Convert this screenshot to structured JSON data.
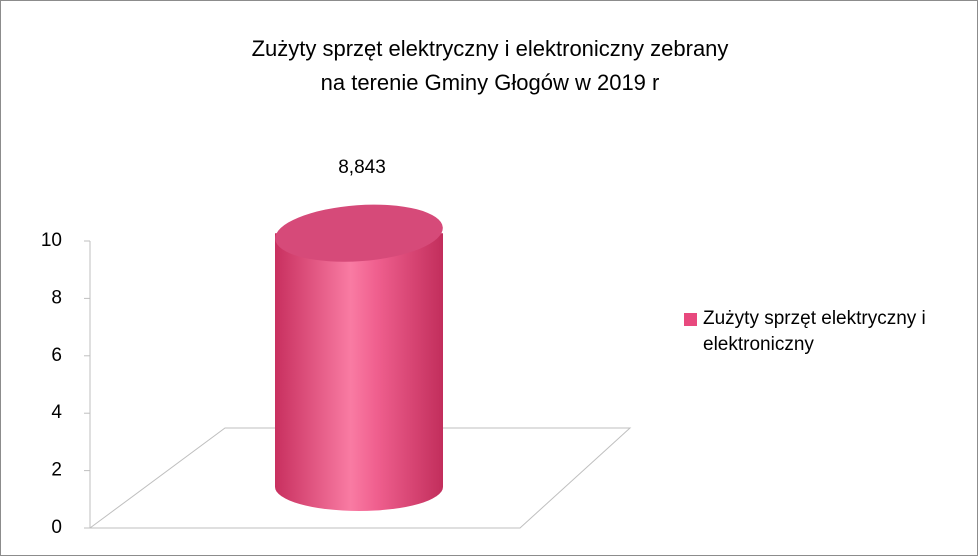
{
  "chart_data": {
    "type": "bar3d",
    "title": [
      "Zużyty sprzęt elektryczny i elektroniczny zebrany",
      "na terenie Gminy Głogów w 2019 r"
    ],
    "series": [
      {
        "name": "Zużyty sprzęt elektryczny i elektroniczny",
        "color": "#e8497e",
        "values": [
          8.843
        ],
        "value_labels": [
          "8,843"
        ]
      }
    ],
    "ylim": [
      0,
      10
    ],
    "yticks": [
      0,
      2,
      4,
      6,
      8,
      10
    ],
    "legend": "right"
  }
}
